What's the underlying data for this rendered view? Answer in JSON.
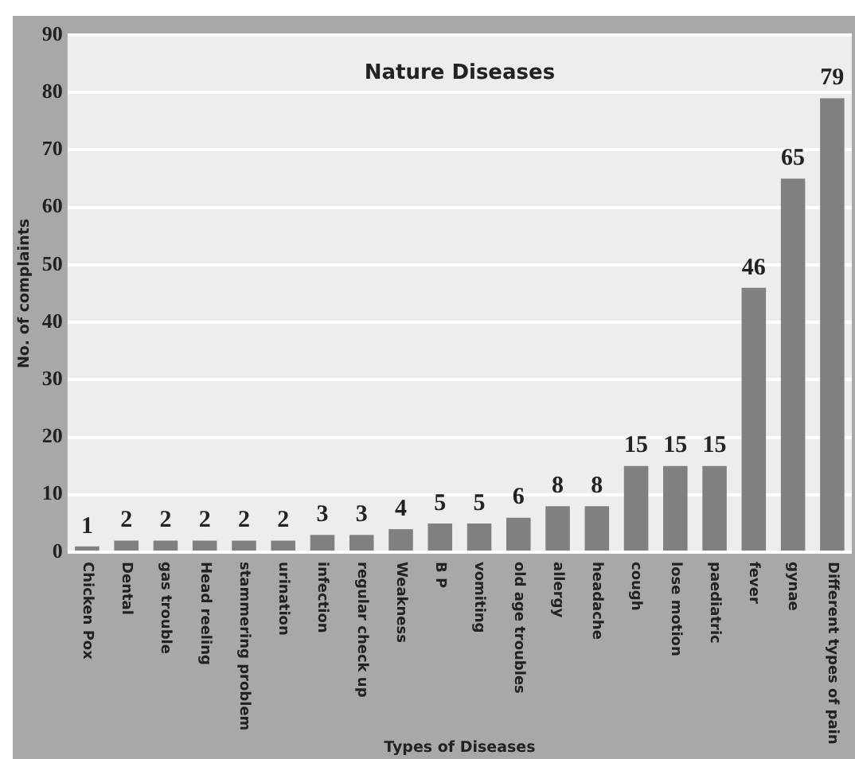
{
  "chart_data": {
    "type": "bar",
    "title": "Nature Diseases",
    "xlabel": "Types of Diseases",
    "ylabel": "No. of complaints",
    "categories": [
      "Chicken Pox",
      "Dental",
      "gas trouble",
      "Head reeling",
      "stammering problem",
      "urination",
      "infection",
      "regular check up",
      "Weakness",
      "B P",
      "vomiting",
      "old age troubles",
      "allergy",
      "headache",
      "cough",
      "lose motion",
      "paediatric",
      "fever",
      "gynae",
      "Different types of pain"
    ],
    "values": [
      1,
      2,
      2,
      2,
      2,
      2,
      3,
      3,
      4,
      5,
      5,
      6,
      8,
      8,
      15,
      15,
      15,
      46,
      65,
      79
    ],
    "color": "#808080",
    "ylim": [
      0,
      90
    ],
    "yticks": [
      0,
      10,
      20,
      30,
      40,
      50,
      60,
      70,
      80,
      90
    ],
    "grid": "y",
    "data_labels": true
  }
}
